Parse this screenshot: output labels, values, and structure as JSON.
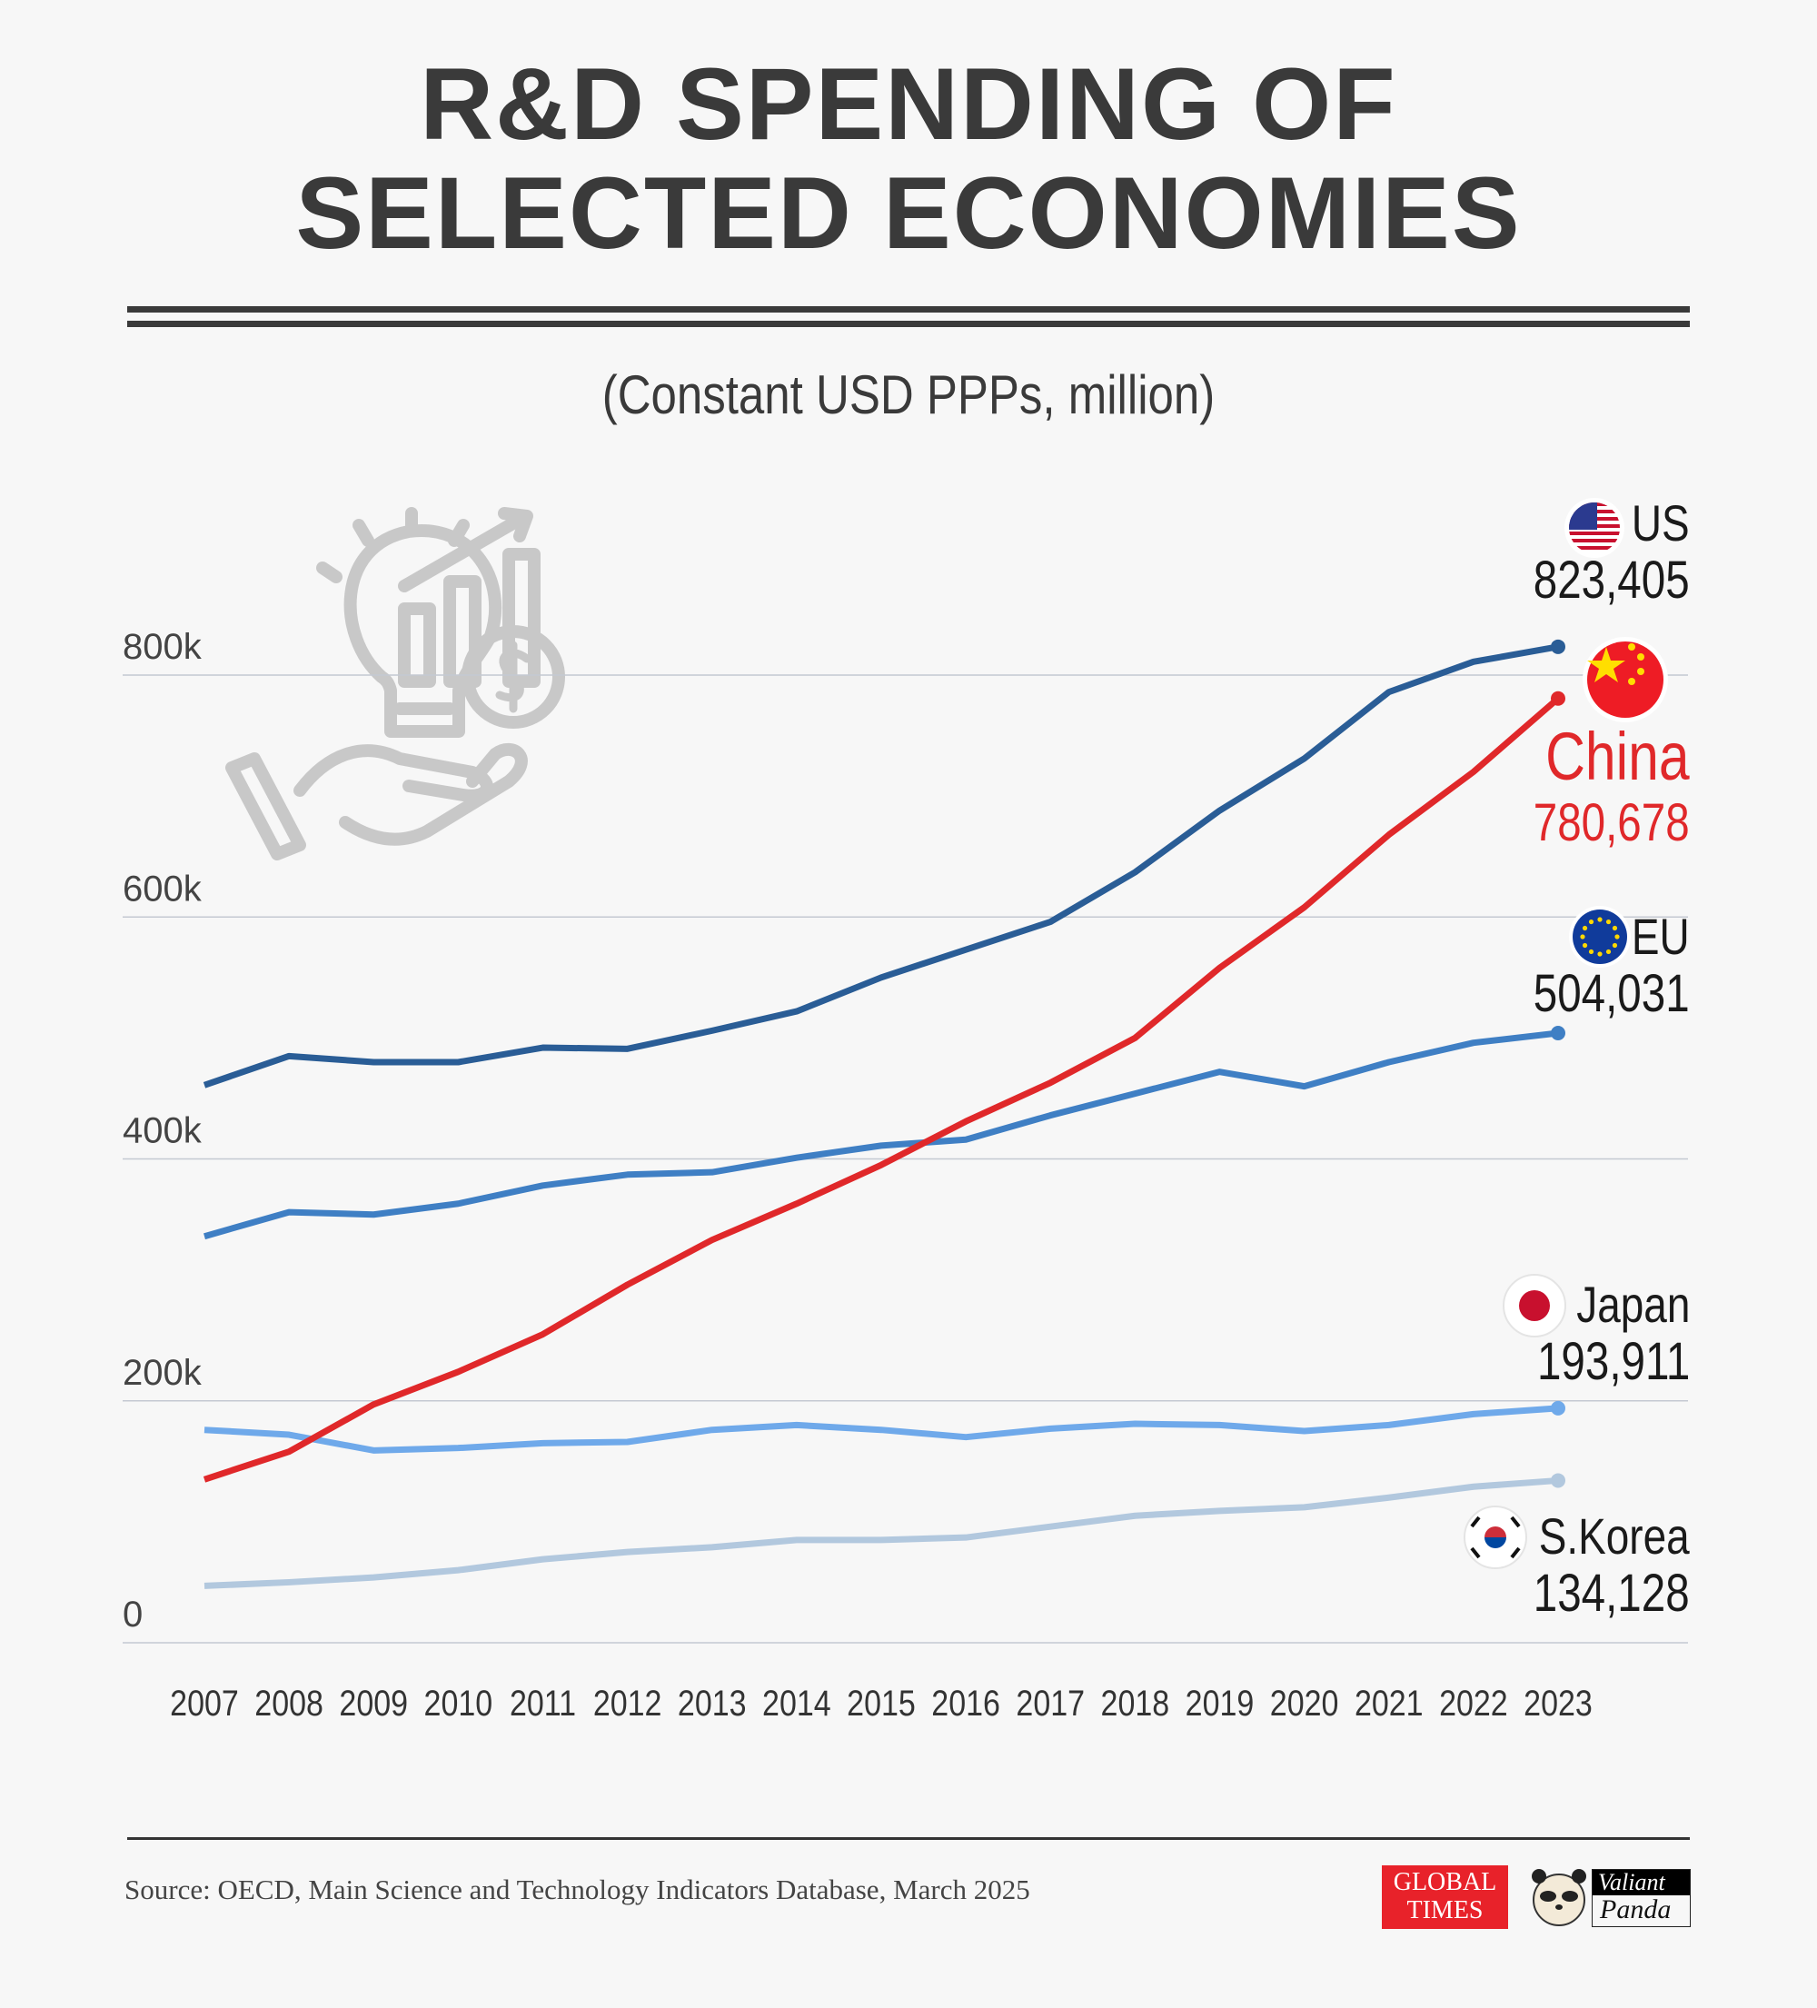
{
  "title_line1": "R&D SPENDING OF",
  "title_line2": "SELECTED ECONOMIES",
  "subtitle": "(Constant USD PPPs, million)",
  "source": "Source: OECD, Main Science and Technology Indicators Database, March 2025",
  "logos": {
    "global_times": "GLOBAL TIMES",
    "valiant_panda": "Valiant Panda"
  },
  "chart_data": {
    "type": "line",
    "title": "R&D SPENDING OF SELECTED ECONOMIES",
    "subtitle": "(Constant USD PPPs, million)",
    "ylim": [
      0,
      900000
    ],
    "yticks": [
      0,
      200000,
      400000,
      600000,
      800000
    ],
    "ytick_labels": [
      "0",
      "200k",
      "400k",
      "600k",
      "800k"
    ],
    "grid": true,
    "x": [
      "2007",
      "2008",
      "2009",
      "2010",
      "2011",
      "2012",
      "2013",
      "2014",
      "2015",
      "2016",
      "2017",
      "2018",
      "2019",
      "2020",
      "2021",
      "2022",
      "2023"
    ],
    "series": [
      {
        "name": "US",
        "end_label": "823,405",
        "color": "#2a5d96",
        "flag": "us-flag",
        "values": [
          461000,
          485000,
          480000,
          480000,
          492000,
          491000,
          506000,
          522000,
          550000,
          573000,
          596000,
          637000,
          688000,
          731000,
          786000,
          811000,
          823405
        ]
      },
      {
        "name": "China",
        "end_label": "780,678",
        "color": "#e0282a",
        "flag": "china-flag",
        "values": [
          135000,
          158000,
          197000,
          224000,
          255000,
          296000,
          333000,
          363000,
          395000,
          431000,
          463000,
          500000,
          558000,
          608000,
          668000,
          720000,
          780678
        ]
      },
      {
        "name": "EU",
        "end_label": "504,031",
        "color": "#3f7fc4",
        "flag": "eu-flag",
        "values": [
          336000,
          356000,
          354000,
          363000,
          378000,
          387000,
          389000,
          401000,
          411000,
          416000,
          436000,
          454000,
          472000,
          460000,
          480000,
          496000,
          504031
        ]
      },
      {
        "name": "Japan",
        "end_label": "193,911",
        "color": "#6fa9ea",
        "flag": "japan-flag",
        "values": [
          176000,
          172000,
          159000,
          161000,
          165000,
          166000,
          176000,
          180000,
          176000,
          170000,
          177000,
          181000,
          180000,
          175000,
          180000,
          189000,
          193911
        ]
      },
      {
        "name": "S.Korea",
        "end_label": "134,128",
        "color": "#b2c8de",
        "flag": "korea-flag",
        "values": [
          47000,
          50000,
          54000,
          60000,
          69000,
          75000,
          79000,
          85000,
          85000,
          87000,
          96000,
          105000,
          109000,
          112000,
          120000,
          129000,
          134128
        ]
      }
    ]
  }
}
